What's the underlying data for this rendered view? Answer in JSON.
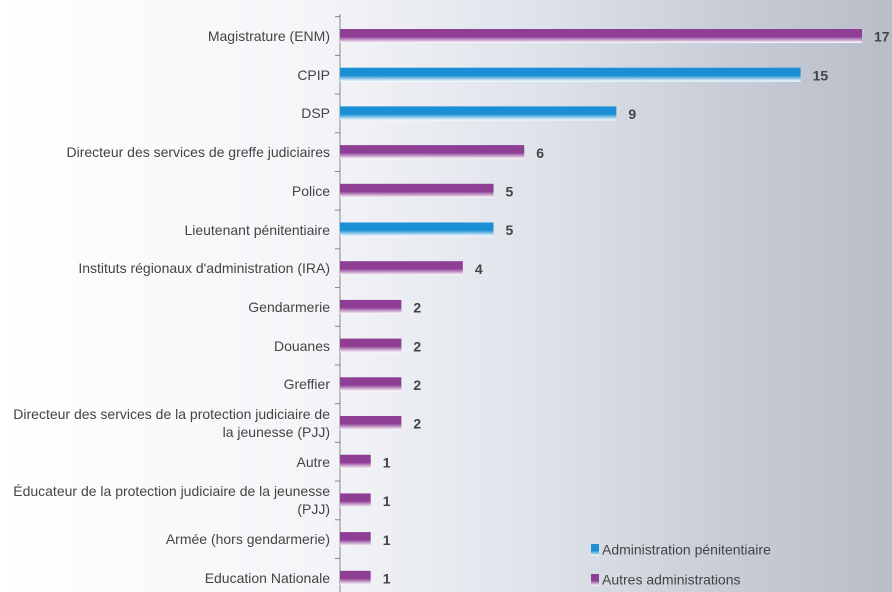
{
  "chart_data": {
    "type": "bar",
    "orientation": "horizontal",
    "categories": [
      "Magistrature (ENM)",
      "CPIP",
      "DSP",
      "Directeur des services de greffe judiciaires",
      "Police",
      "Lieutenant pénitentiaire",
      "Instituts régionaux d'administration (IRA)",
      "Gendarmerie",
      "Douanes",
      "Greffier",
      "Directeur des services de la protection judiciaire de la jeunesse (PJJ)",
      "Autre",
      "Éducateur de la protection judiciaire de la jeunesse (PJJ)",
      "Armée (hors gendarmerie)",
      "Education Nationale"
    ],
    "series": [
      {
        "name": "Administration pénitentiaire",
        "color": "#1b8fd6",
        "values": [
          null,
          15,
          9,
          null,
          null,
          5,
          null,
          null,
          null,
          null,
          null,
          null,
          null,
          null,
          null
        ]
      },
      {
        "name": "Autres administrations",
        "color": "#8e3f95",
        "values": [
          17,
          null,
          null,
          6,
          5,
          null,
          4,
          2,
          2,
          2,
          2,
          1,
          1,
          1,
          1
        ]
      }
    ],
    "xlim": [
      0,
      17
    ],
    "legend": "bottom-right"
  }
}
